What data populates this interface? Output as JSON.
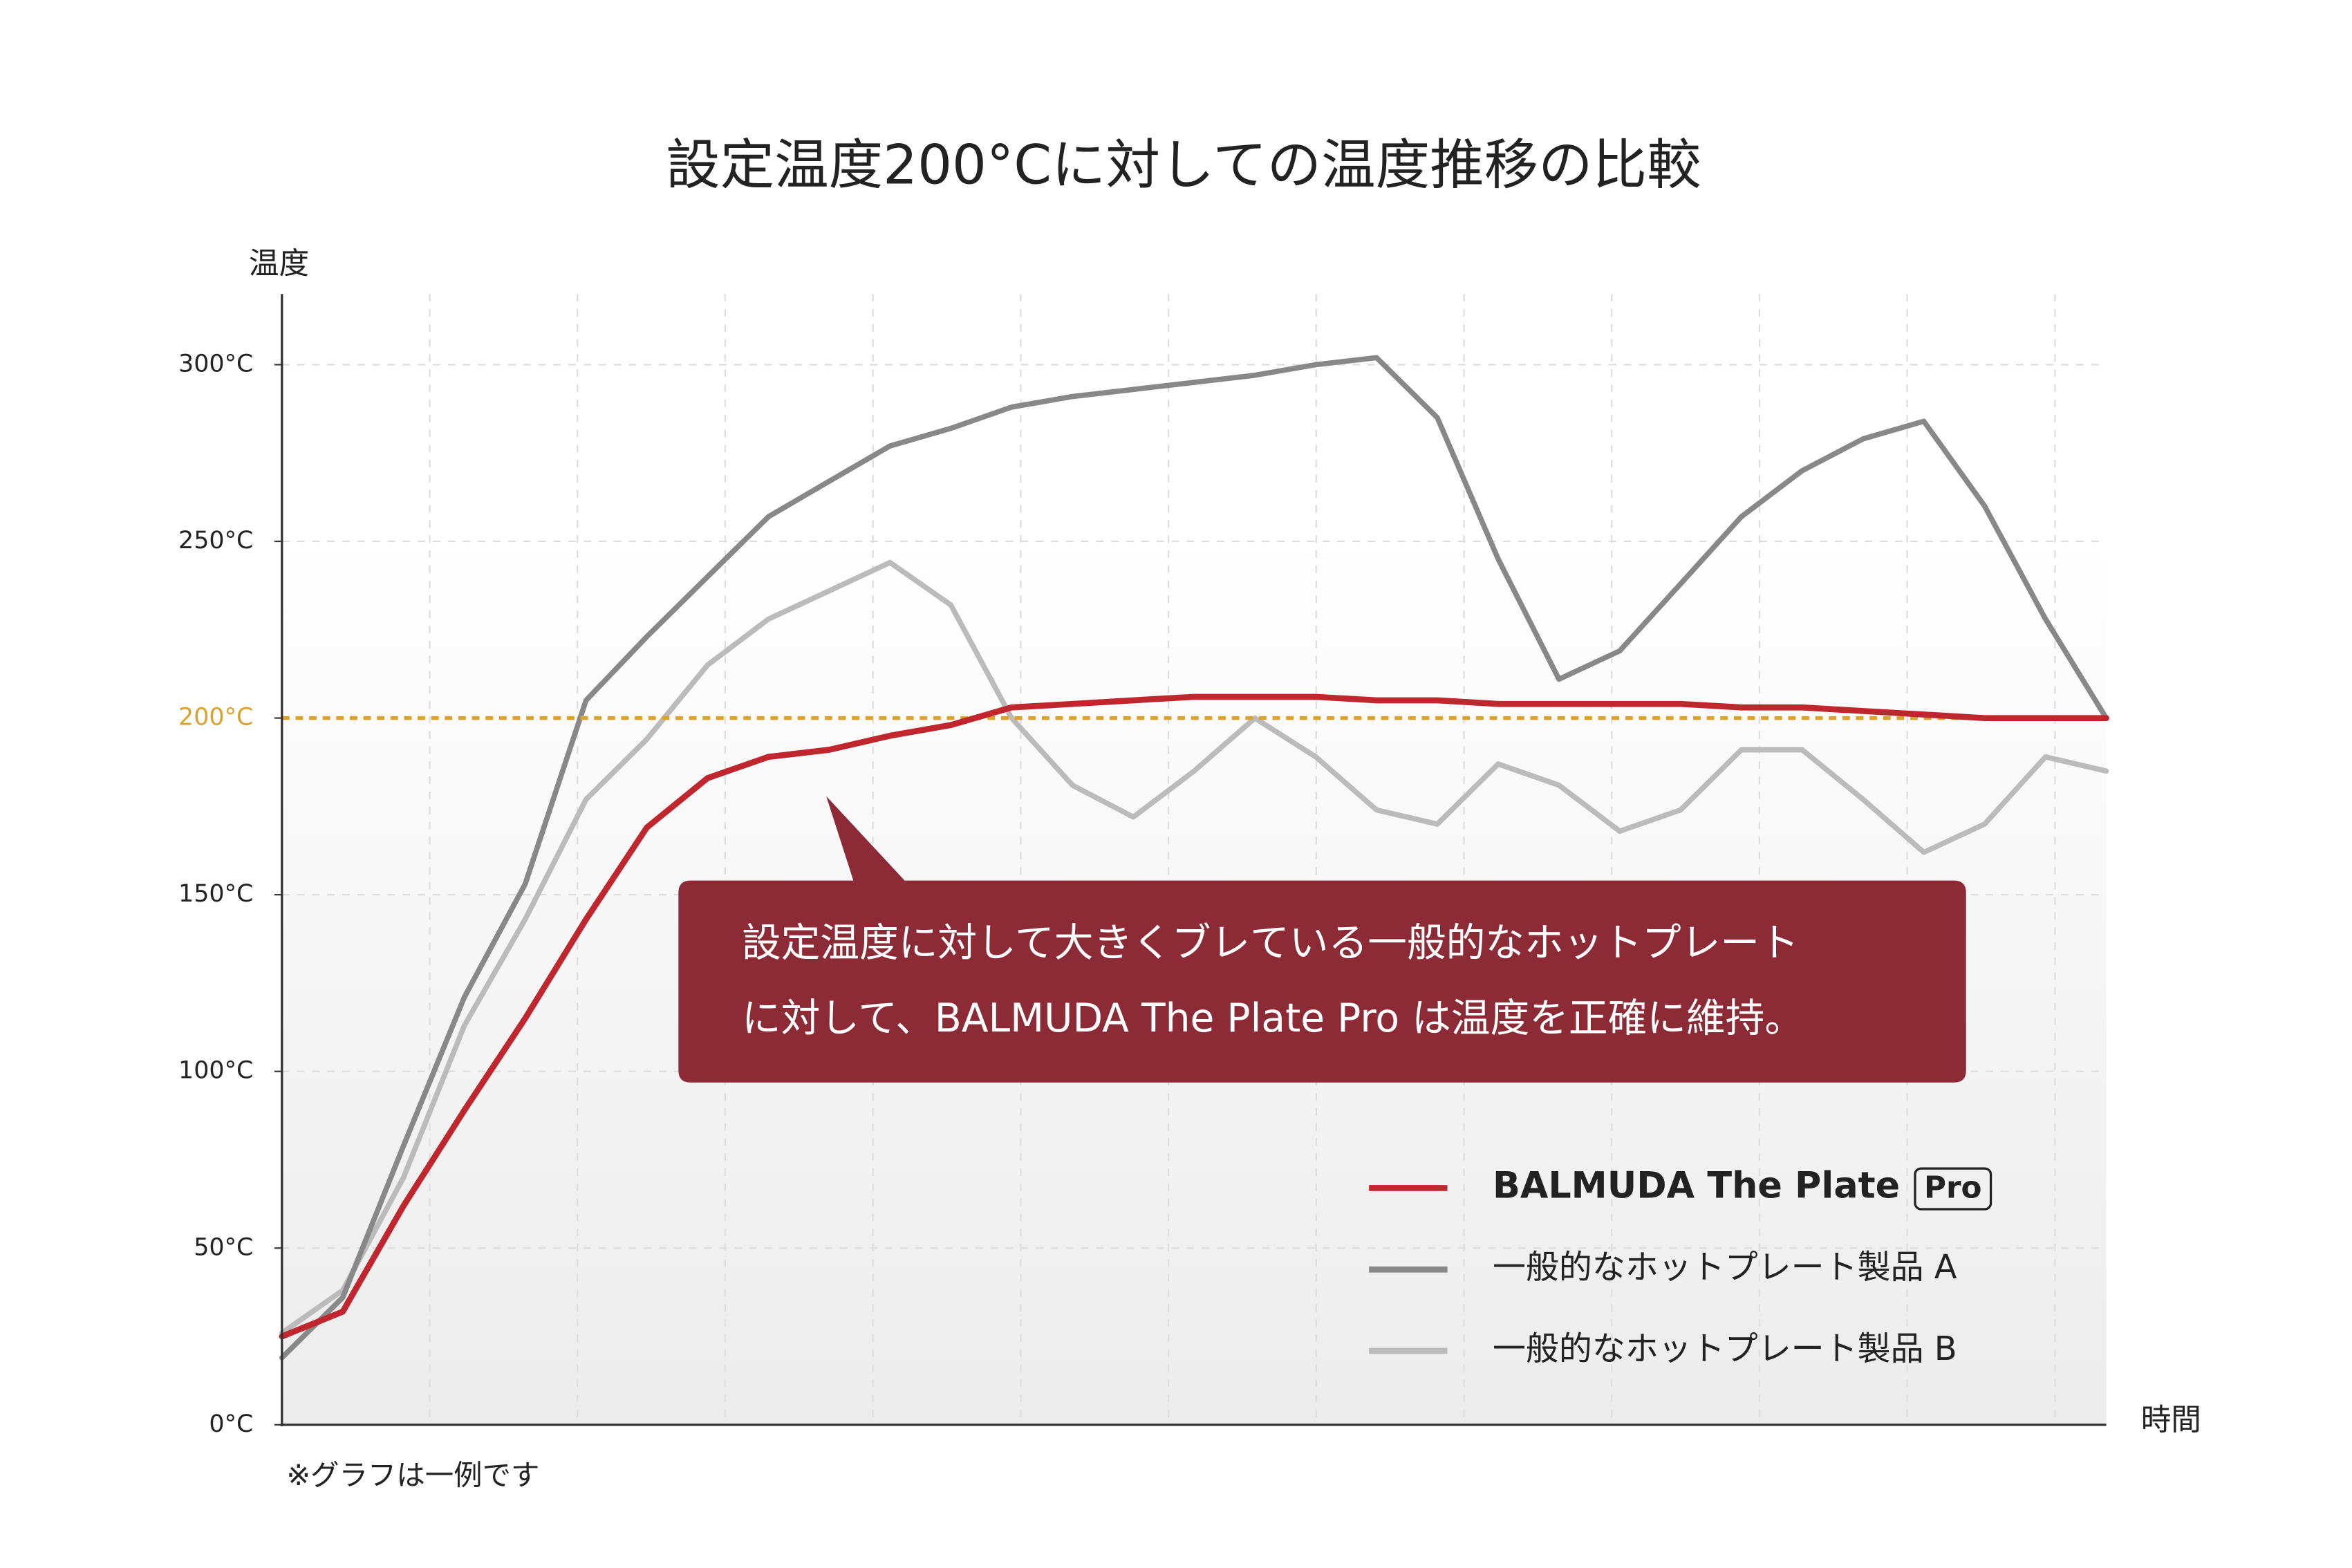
{
  "chart_data": {
    "type": "line",
    "title": "設定温度200°Cに対しての温度推移の比較",
    "y_label": "温度",
    "x_label": "時間",
    "footnote": "※グラフは一例です",
    "annotation": [
      "設定温度に対して大きくブレている一般的なホットプレート",
      "に対して、BALMUDA The Plate Pro は温度を正確に維持。"
    ],
    "annotation_color": "#8c2b35",
    "categories": [
      null,
      null,
      null,
      null,
      null,
      null,
      null,
      null,
      null,
      null,
      null,
      null,
      null,
      null,
      null,
      null,
      null,
      null,
      null,
      null,
      null,
      null,
      null,
      null,
      null,
      null,
      null,
      null,
      null,
      null,
      null
    ],
    "ylim": [
      0,
      320
    ],
    "yticks": [
      {
        "value": 0,
        "label": "0°C"
      },
      {
        "value": 50,
        "label": "50°C"
      },
      {
        "value": 100,
        "label": "100°C"
      },
      {
        "value": 150,
        "label": "150°C"
      },
      {
        "value": 200,
        "label": "200°C"
      },
      {
        "value": 250,
        "label": "250°C"
      },
      {
        "value": 300,
        "label": "300°C"
      }
    ],
    "grid": true,
    "reference_line": {
      "value": 200,
      "color": "#dca22a"
    },
    "series": [
      {
        "name": "BALMUDA The Plate",
        "badge": "Pro",
        "color": "#c0262d",
        "values": [
          25,
          32,
          62,
          89,
          115,
          143,
          169,
          183,
          189,
          191,
          195,
          198,
          203,
          204,
          205,
          206,
          206,
          206,
          205,
          205,
          204,
          204,
          204,
          204,
          203,
          203,
          202,
          201,
          200,
          200,
          200
        ]
      },
      {
        "name": "一般的なホットプレート製品 A",
        "color": "#888888",
        "values": [
          19,
          36,
          79,
          121,
          153,
          205,
          223,
          240,
          257,
          267,
          277,
          282,
          288,
          291,
          293,
          295,
          297,
          300,
          302,
          285,
          245,
          211,
          219,
          238,
          257,
          270,
          279,
          284,
          260,
          228,
          200
        ]
      },
      {
        "name": "一般的なホットプレート製品 B",
        "color": "#bbbbbb",
        "values": [
          26,
          38,
          70,
          113,
          143,
          177,
          194,
          215,
          228,
          236,
          244,
          232,
          200,
          181,
          172,
          185,
          200,
          189,
          174,
          170,
          187,
          181,
          168,
          174,
          191,
          191,
          177,
          162,
          170,
          189,
          185
        ]
      }
    ]
  }
}
